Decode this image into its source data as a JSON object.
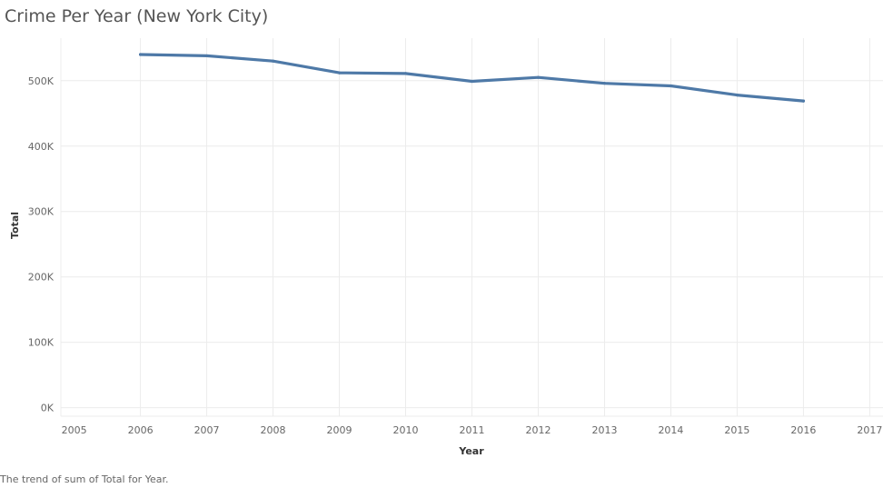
{
  "chart_data": {
    "type": "line",
    "title": "Crime Per Year (New York City)",
    "xlabel": "Year",
    "ylabel": "Total",
    "caption": "The trend of sum of Total for Year.",
    "x": [
      2006,
      2007,
      2008,
      2009,
      2010,
      2011,
      2012,
      2013,
      2014,
      2015,
      2016
    ],
    "values": [
      540000,
      538000,
      530000,
      512000,
      511000,
      499000,
      505000,
      496000,
      492000,
      478000,
      469000
    ],
    "x_ticks": [
      2005,
      2006,
      2007,
      2008,
      2009,
      2010,
      2011,
      2012,
      2013,
      2014,
      2015,
      2016,
      2017
    ],
    "x_tick_labels": [
      "2005",
      "2006",
      "2007",
      "2008",
      "2009",
      "2010",
      "2011",
      "2012",
      "2013",
      "2014",
      "2015",
      "2016",
      "2017"
    ],
    "y_ticks": [
      0,
      100000,
      200000,
      300000,
      400000,
      500000
    ],
    "y_tick_labels": [
      "0K",
      "100K",
      "200K",
      "300K",
      "400K",
      "500K"
    ],
    "xlim": [
      2004.8,
      2017.2
    ],
    "ylim": [
      -13000,
      565000
    ],
    "grid": true,
    "line_color": "#4e79a7",
    "grid_color": "#ececec"
  }
}
